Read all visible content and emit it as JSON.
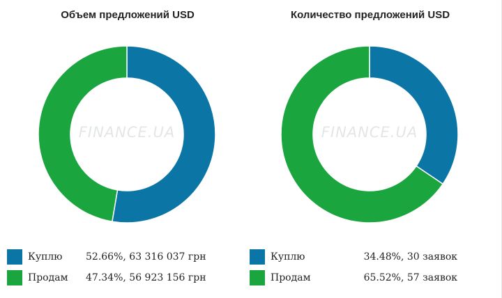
{
  "colors": {
    "buy": "#0b76a6",
    "sell": "#1aa53f"
  },
  "watermark": "FINANCE.UA",
  "chart_data": [
    {
      "type": "pie",
      "title": "Объем предложений USD",
      "categories": [
        "Куплю",
        "Продам"
      ],
      "values": [
        52.66,
        47.34
      ],
      "legend_values": [
        "52.66%, 63 316 037 грн",
        "47.34%, 56 923 156 грн"
      ],
      "legend": "bottom"
    },
    {
      "type": "pie",
      "title": "Количество предложений USD",
      "categories": [
        "Куплю",
        "Продам"
      ],
      "values": [
        34.48,
        65.52
      ],
      "legend_values": [
        "34.48%, 30 заявок",
        "65.52%, 57 заявок"
      ],
      "legend": "bottom"
    }
  ]
}
